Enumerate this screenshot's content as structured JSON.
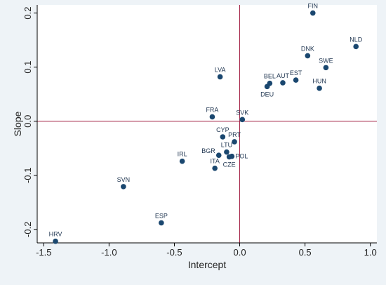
{
  "colors": {
    "outer_bg": "#eef3f7",
    "plot_bg": "#ffffff",
    "marker": "#1a476f",
    "refline": "#a01c40",
    "text": "#222222"
  },
  "chart_data": {
    "type": "scatter",
    "title": "",
    "xlabel": "Intercept",
    "ylabel": "Slope",
    "xlim": [
      -1.55,
      1.05
    ],
    "ylim": [
      -0.225,
      0.215
    ],
    "x_ticks": [
      -1.5,
      -1.0,
      -0.5,
      0.0,
      0.5,
      1.0
    ],
    "x_tick_labels": [
      "-1.5",
      "-1.0",
      "-0.5",
      "0.0",
      "0.5",
      "1.0"
    ],
    "y_ticks": [
      -0.2,
      -0.1,
      0.0,
      0.1,
      0.2
    ],
    "y_tick_labels": [
      "-0.2",
      "-0.1",
      "0.0",
      "0.1",
      "0.2"
    ],
    "grid": false,
    "reference_lines": {
      "x": 0,
      "y": 0
    },
    "points": [
      {
        "label": "FIN",
        "x": 0.56,
        "y": 0.2,
        "label_pos": "above"
      },
      {
        "label": "NLD",
        "x": 0.89,
        "y": 0.138,
        "label_pos": "above"
      },
      {
        "label": "DNK",
        "x": 0.52,
        "y": 0.121,
        "label_pos": "above"
      },
      {
        "label": "SWE",
        "x": 0.66,
        "y": 0.099,
        "label_pos": "above"
      },
      {
        "label": "LVA",
        "x": -0.15,
        "y": 0.082,
        "label_pos": "above"
      },
      {
        "label": "BEL",
        "x": 0.23,
        "y": 0.07,
        "label_pos": "above"
      },
      {
        "label": "AUT",
        "x": 0.33,
        "y": 0.071,
        "label_pos": "above"
      },
      {
        "label": "EST",
        "x": 0.43,
        "y": 0.076,
        "label_pos": "above"
      },
      {
        "label": "DEU",
        "x": 0.21,
        "y": 0.064,
        "label_pos": "below"
      },
      {
        "label": "HUN",
        "x": 0.61,
        "y": 0.061,
        "label_pos": "above"
      },
      {
        "label": "FRA",
        "x": -0.21,
        "y": 0.008,
        "label_pos": "above"
      },
      {
        "label": "SVK",
        "x": 0.02,
        "y": 0.003,
        "label_pos": "above"
      },
      {
        "label": "CYP",
        "x": -0.13,
        "y": -0.029,
        "label_pos": "above"
      },
      {
        "label": "PRT",
        "x": -0.04,
        "y": -0.038,
        "label_pos": "above"
      },
      {
        "label": "LTU",
        "x": -0.1,
        "y": -0.057,
        "label_pos": "above"
      },
      {
        "label": "BGR",
        "x": -0.16,
        "y": -0.063,
        "label_pos": "left"
      },
      {
        "label": "POL",
        "x": -0.06,
        "y": -0.065,
        "label_pos": "right"
      },
      {
        "label": "CZE",
        "x": -0.08,
        "y": -0.066,
        "label_pos": "below"
      },
      {
        "label": "IRL",
        "x": -0.44,
        "y": -0.074,
        "label_pos": "above"
      },
      {
        "label": "ITA",
        "x": -0.19,
        "y": -0.087,
        "label_pos": "above"
      },
      {
        "label": "SVN",
        "x": -0.89,
        "y": -0.121,
        "label_pos": "above"
      },
      {
        "label": "ESP",
        "x": -0.6,
        "y": -0.188,
        "label_pos": "above"
      },
      {
        "label": "HRV",
        "x": -1.41,
        "y": -0.222,
        "label_pos": "above"
      }
    ]
  }
}
